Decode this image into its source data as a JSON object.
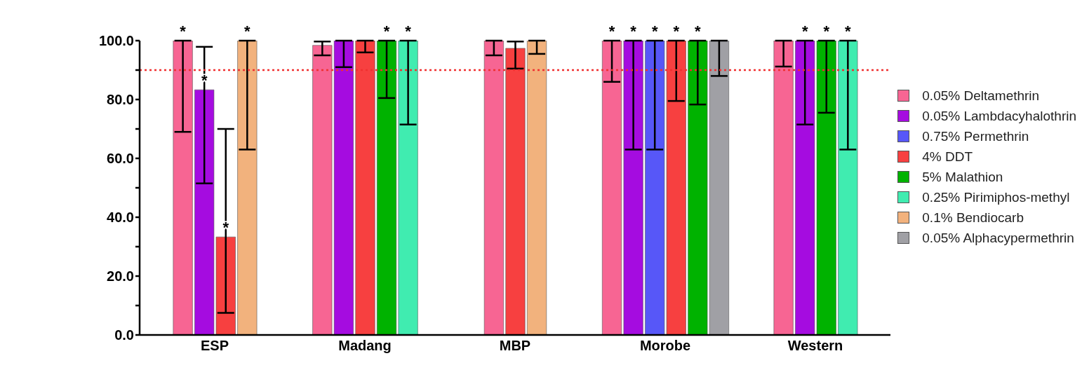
{
  "chart_data": {
    "type": "bar",
    "categories": [
      "ESP",
      "Madang",
      "MBP",
      "Morobe",
      "Western"
    ],
    "series": [
      {
        "name": "0.05% Deltamethrin",
        "color": "#f76593",
        "values": [
          100,
          98.4,
          100,
          100,
          100
        ],
        "errors": [
          [
            69,
            100
          ],
          [
            95,
            99.7
          ],
          [
            95,
            100
          ],
          [
            86,
            100
          ],
          [
            91.2,
            100
          ]
        ],
        "value_labels": [
          "*",
          null,
          null,
          "*",
          null
        ]
      },
      {
        "name": "0.05% Lambdacyhalothrin",
        "color": "#a50ce0",
        "values": [
          83.3,
          100,
          null,
          100,
          100
        ],
        "errors": [
          [
            51.5,
            97.9
          ],
          [
            91,
            100
          ],
          null,
          [
            63,
            100
          ],
          [
            71.5,
            100
          ]
        ],
        "value_labels": [
          "*",
          null,
          null,
          "*",
          "*"
        ]
      },
      {
        "name": "0.75% Permethrin",
        "color": "#5757f8",
        "values": [
          null,
          null,
          null,
          100,
          null
        ],
        "errors": [
          null,
          null,
          null,
          [
            63,
            100
          ],
          null
        ],
        "value_labels": [
          null,
          null,
          null,
          "*",
          null
        ]
      },
      {
        "name": "4% DDT",
        "color": "#f74040",
        "values": [
          33.3,
          100,
          97.4,
          100,
          null
        ],
        "errors": [
          [
            7.5,
            70
          ],
          [
            96,
            100
          ],
          [
            90.5,
            99.7
          ],
          [
            79.5,
            100
          ],
          null
        ],
        "value_labels": [
          "*",
          null,
          null,
          "*",
          null
        ]
      },
      {
        "name": "5% Malathion",
        "color": "#00b200",
        "values": [
          null,
          100,
          null,
          100,
          100
        ],
        "errors": [
          null,
          [
            80.5,
            100
          ],
          null,
          [
            78.3,
            100
          ],
          [
            75.5,
            100
          ]
        ],
        "value_labels": [
          null,
          "*",
          null,
          "*",
          "*"
        ]
      },
      {
        "name": "0.25% Pirimiphos-methyl",
        "color": "#40ecb0",
        "values": [
          null,
          100,
          null,
          null,
          100
        ],
        "errors": [
          null,
          [
            71.5,
            100
          ],
          null,
          null,
          [
            63,
            100
          ]
        ],
        "value_labels": [
          null,
          "*",
          null,
          null,
          "*"
        ]
      },
      {
        "name": "0.1% Bendiocarb",
        "color": "#f2b27d",
        "values": [
          100,
          null,
          100,
          null,
          null
        ],
        "errors": [
          [
            63,
            100
          ],
          null,
          [
            95.5,
            100
          ],
          null,
          null
        ],
        "value_labels": [
          "*",
          null,
          null,
          null,
          null
        ]
      },
      {
        "name": "0.05% Alphacypermethrin",
        "color": "#a0a0a5",
        "values": [
          null,
          null,
          null,
          100,
          null
        ],
        "errors": [
          null,
          null,
          null,
          [
            88,
            100
          ],
          null
        ],
        "value_labels": [
          null,
          null,
          null,
          null,
          null
        ]
      }
    ],
    "ylim": [
      0,
      100
    ],
    "yticks": [
      {
        "value": 0,
        "label": "0.0"
      },
      {
        "value": 10,
        "label": null
      },
      {
        "value": 20,
        "label": "20.0"
      },
      {
        "value": 30,
        "label": null
      },
      {
        "value": 40,
        "label": "40.0"
      },
      {
        "value": 50,
        "label": null
      },
      {
        "value": 60,
        "label": "60.0"
      },
      {
        "value": 70,
        "label": null
      },
      {
        "value": 80,
        "label": "80.0"
      },
      {
        "value": 90,
        "label": null
      },
      {
        "value": 100,
        "label": "100.0"
      }
    ],
    "ref_lines": [
      {
        "axis": "y",
        "value": 90,
        "color": "#f03030",
        "line_style": "dotted"
      }
    ],
    "grid": false,
    "legend": "right"
  }
}
